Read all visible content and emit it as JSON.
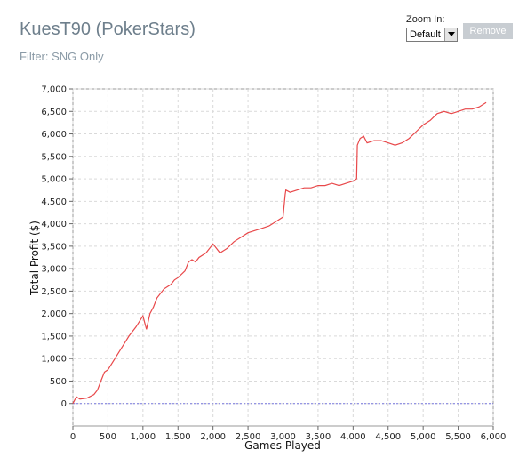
{
  "header": {
    "title": "KuesT90 (PokerStars)",
    "filter": "Filter: SNG Only"
  },
  "controls": {
    "zoom_label": "Zoom In:",
    "zoom_value": "Default",
    "remove_label": "Remove"
  },
  "colors": {
    "line": "#e8484a",
    "zero_line": "#7777dd",
    "grid": "#d9d9d9"
  },
  "chart_data": {
    "type": "line",
    "xlabel": "Games Played",
    "ylabel": "Total Profit ($)",
    "xlim": [
      0,
      6000
    ],
    "ylim": [
      -500,
      7000
    ],
    "grid": true,
    "x_ticks": [
      0,
      500,
      1000,
      1500,
      2000,
      2500,
      3000,
      3500,
      4000,
      4500,
      5000,
      5500,
      6000
    ],
    "x_tick_labels": [
      "0",
      "500",
      "1,000",
      "1,500",
      "2,000",
      "2,500",
      "3,000",
      "3,500",
      "4,000",
      "4,500",
      "5,000",
      "5,500",
      "6,000"
    ],
    "y_ticks": [
      0,
      500,
      1000,
      1500,
      2000,
      2500,
      3000,
      3500,
      4000,
      4500,
      5000,
      5500,
      6000,
      6500,
      7000
    ],
    "y_tick_labels": [
      "0",
      "500",
      "1,000",
      "1,500",
      "2,000",
      "2,500",
      "3,000",
      "3,500",
      "4,000",
      "4,500",
      "5,000",
      "5,500",
      "6,000",
      "6,500",
      "7,000"
    ],
    "series": [
      {
        "x": [
          0,
          50,
          100,
          200,
          300,
          350,
          400,
          450,
          500,
          600,
          700,
          800,
          900,
          1000,
          1050,
          1100,
          1150,
          1200,
          1300,
          1400,
          1450,
          1500,
          1600,
          1650,
          1700,
          1750,
          1800,
          1900,
          2000,
          2050,
          2100,
          2150,
          2200,
          2300,
          2400,
          2500,
          2600,
          2700,
          2800,
          2900,
          3000,
          3030,
          3040,
          3100,
          3200,
          3300,
          3400,
          3500,
          3600,
          3700,
          3800,
          3900,
          4000,
          4050,
          4060,
          4100,
          4150,
          4200,
          4300,
          4400,
          4500,
          4600,
          4700,
          4800,
          4900,
          5000,
          5100,
          5200,
          5300,
          5400,
          5500,
          5600,
          5700,
          5800,
          5900
        ],
        "y": [
          0,
          150,
          100,
          120,
          200,
          300,
          500,
          700,
          750,
          1000,
          1250,
          1500,
          1700,
          1950,
          1650,
          2000,
          2150,
          2350,
          2550,
          2650,
          2750,
          2800,
          2950,
          3150,
          3200,
          3150,
          3250,
          3350,
          3550,
          3450,
          3350,
          3400,
          3450,
          3600,
          3700,
          3800,
          3850,
          3900,
          3950,
          4050,
          4150,
          4650,
          4750,
          4700,
          4750,
          4800,
          4800,
          4850,
          4850,
          4900,
          4850,
          4900,
          4950,
          5000,
          5750,
          5900,
          5950,
          5800,
          5850,
          5850,
          5800,
          5750,
          5800,
          5900,
          6050,
          6200,
          6300,
          6450,
          6500,
          6450,
          6500,
          6550,
          6550,
          6600,
          6700
        ]
      }
    ],
    "zero_line": 0
  }
}
